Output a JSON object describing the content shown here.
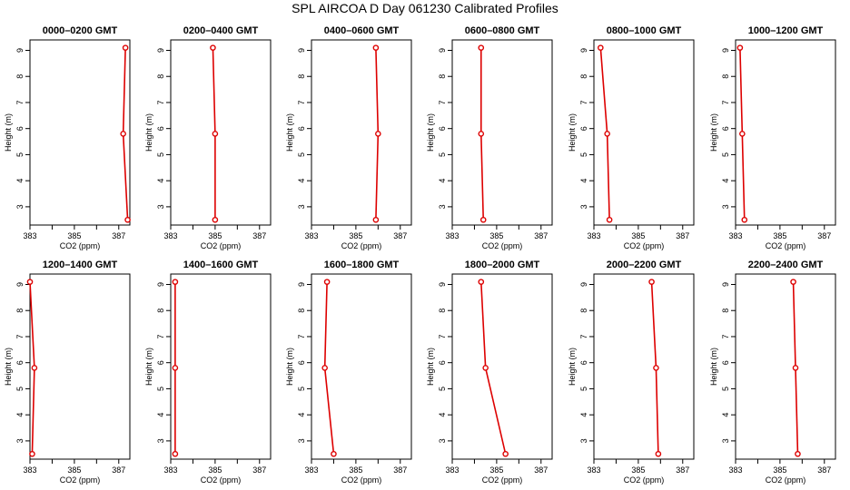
{
  "title": "SPL AIRCOA D  Day 061230  Calibrated Profiles",
  "colors": {
    "series": "#dd0000",
    "axis": "#000000"
  },
  "chart_data": [
    {
      "type": "line",
      "title": "0000–0200 GMT",
      "xlabel": "CO2 (ppm)",
      "ylabel": "Height (m)",
      "xlim": [
        383,
        387.5
      ],
      "ylim": [
        2.3,
        9.4
      ],
      "xticks": [
        383,
        385,
        387
      ],
      "yticks": [
        3,
        4,
        5,
        6,
        7,
        8,
        9
      ],
      "x": [
        387.3,
        387.2,
        387.4
      ],
      "y": [
        9.1,
        5.8,
        2.5
      ]
    },
    {
      "type": "line",
      "title": "0200–0400 GMT",
      "xlabel": "CO2 (ppm)",
      "ylabel": "Height (m)",
      "xlim": [
        383,
        387.5
      ],
      "ylim": [
        2.3,
        9.4
      ],
      "xticks": [
        383,
        385,
        387
      ],
      "yticks": [
        3,
        4,
        5,
        6,
        7,
        8,
        9
      ],
      "x": [
        384.9,
        385.0,
        385.0
      ],
      "y": [
        9.1,
        5.8,
        2.5
      ]
    },
    {
      "type": "line",
      "title": "0400–0600 GMT",
      "xlabel": "CO2 (ppm)",
      "ylabel": "Height (m)",
      "xlim": [
        383,
        387.5
      ],
      "ylim": [
        2.3,
        9.4
      ],
      "xticks": [
        383,
        385,
        387
      ],
      "yticks": [
        3,
        4,
        5,
        6,
        7,
        8,
        9
      ],
      "x": [
        385.9,
        386.0,
        385.9
      ],
      "y": [
        9.1,
        5.8,
        2.5
      ]
    },
    {
      "type": "line",
      "title": "0600–0800 GMT",
      "xlabel": "CO2 (ppm)",
      "ylabel": "Height (m)",
      "xlim": [
        383,
        387.5
      ],
      "ylim": [
        2.3,
        9.4
      ],
      "xticks": [
        383,
        385,
        387
      ],
      "yticks": [
        3,
        4,
        5,
        6,
        7,
        8,
        9
      ],
      "x": [
        384.3,
        384.3,
        384.4
      ],
      "y": [
        9.1,
        5.8,
        2.5
      ]
    },
    {
      "type": "line",
      "title": "0800–1000 GMT",
      "xlabel": "CO2 (ppm)",
      "ylabel": "Height (m)",
      "xlim": [
        383,
        387.5
      ],
      "ylim": [
        2.3,
        9.4
      ],
      "xticks": [
        383,
        385,
        387
      ],
      "yticks": [
        3,
        4,
        5,
        6,
        7,
        8,
        9
      ],
      "x": [
        383.3,
        383.6,
        383.7
      ],
      "y": [
        9.1,
        5.8,
        2.5
      ]
    },
    {
      "type": "line",
      "title": "1000–1200 GMT",
      "xlabel": "CO2 (ppm)",
      "ylabel": "Height (m)",
      "xlim": [
        383,
        387.5
      ],
      "ylim": [
        2.3,
        9.4
      ],
      "xticks": [
        383,
        385,
        387
      ],
      "yticks": [
        3,
        4,
        5,
        6,
        7,
        8,
        9
      ],
      "x": [
        383.2,
        383.3,
        383.4
      ],
      "y": [
        9.1,
        5.8,
        2.5
      ]
    },
    {
      "type": "line",
      "title": "1200–1400 GMT",
      "xlabel": "CO2 (ppm)",
      "ylabel": "Height (m)",
      "xlim": [
        383,
        387.5
      ],
      "ylim": [
        2.3,
        9.4
      ],
      "xticks": [
        383,
        385,
        387
      ],
      "yticks": [
        3,
        4,
        5,
        6,
        7,
        8,
        9
      ],
      "x": [
        383.0,
        383.2,
        383.1
      ],
      "y": [
        9.1,
        5.8,
        2.5
      ]
    },
    {
      "type": "line",
      "title": "1400–1600 GMT",
      "xlabel": "CO2 (ppm)",
      "ylabel": "Height (m)",
      "xlim": [
        383,
        387.5
      ],
      "ylim": [
        2.3,
        9.4
      ],
      "xticks": [
        383,
        385,
        387
      ],
      "yticks": [
        3,
        4,
        5,
        6,
        7,
        8,
        9
      ],
      "x": [
        383.2,
        383.2,
        383.2
      ],
      "y": [
        9.1,
        5.8,
        2.5
      ]
    },
    {
      "type": "line",
      "title": "1600–1800 GMT",
      "xlabel": "CO2 (ppm)",
      "ylabel": "Height (m)",
      "xlim": [
        383,
        387.5
      ],
      "ylim": [
        2.3,
        9.4
      ],
      "xticks": [
        383,
        385,
        387
      ],
      "yticks": [
        3,
        4,
        5,
        6,
        7,
        8,
        9
      ],
      "x": [
        383.7,
        383.6,
        384.0
      ],
      "y": [
        9.1,
        5.8,
        2.5
      ]
    },
    {
      "type": "line",
      "title": "1800–2000 GMT",
      "xlabel": "CO2 (ppm)",
      "ylabel": "Height (m)",
      "xlim": [
        383,
        387.5
      ],
      "ylim": [
        2.3,
        9.4
      ],
      "xticks": [
        383,
        385,
        387
      ],
      "yticks": [
        3,
        4,
        5,
        6,
        7,
        8,
        9
      ],
      "x": [
        384.3,
        384.5,
        385.4
      ],
      "y": [
        9.1,
        5.8,
        2.5
      ]
    },
    {
      "type": "line",
      "title": "2000–2200 GMT",
      "xlabel": "CO2 (ppm)",
      "ylabel": "Height (m)",
      "xlim": [
        383,
        387.5
      ],
      "ylim": [
        2.3,
        9.4
      ],
      "xticks": [
        383,
        385,
        387
      ],
      "yticks": [
        3,
        4,
        5,
        6,
        7,
        8,
        9
      ],
      "x": [
        385.6,
        385.8,
        385.9
      ],
      "y": [
        9.1,
        5.8,
        2.5
      ]
    },
    {
      "type": "line",
      "title": "2200–2400 GMT",
      "xlabel": "CO2 (ppm)",
      "ylabel": "Height (m)",
      "xlim": [
        383,
        387.5
      ],
      "ylim": [
        2.3,
        9.4
      ],
      "xticks": [
        383,
        385,
        387
      ],
      "yticks": [
        3,
        4,
        5,
        6,
        7,
        8,
        9
      ],
      "x": [
        385.6,
        385.7,
        385.8
      ],
      "y": [
        9.1,
        5.8,
        2.5
      ]
    }
  ]
}
